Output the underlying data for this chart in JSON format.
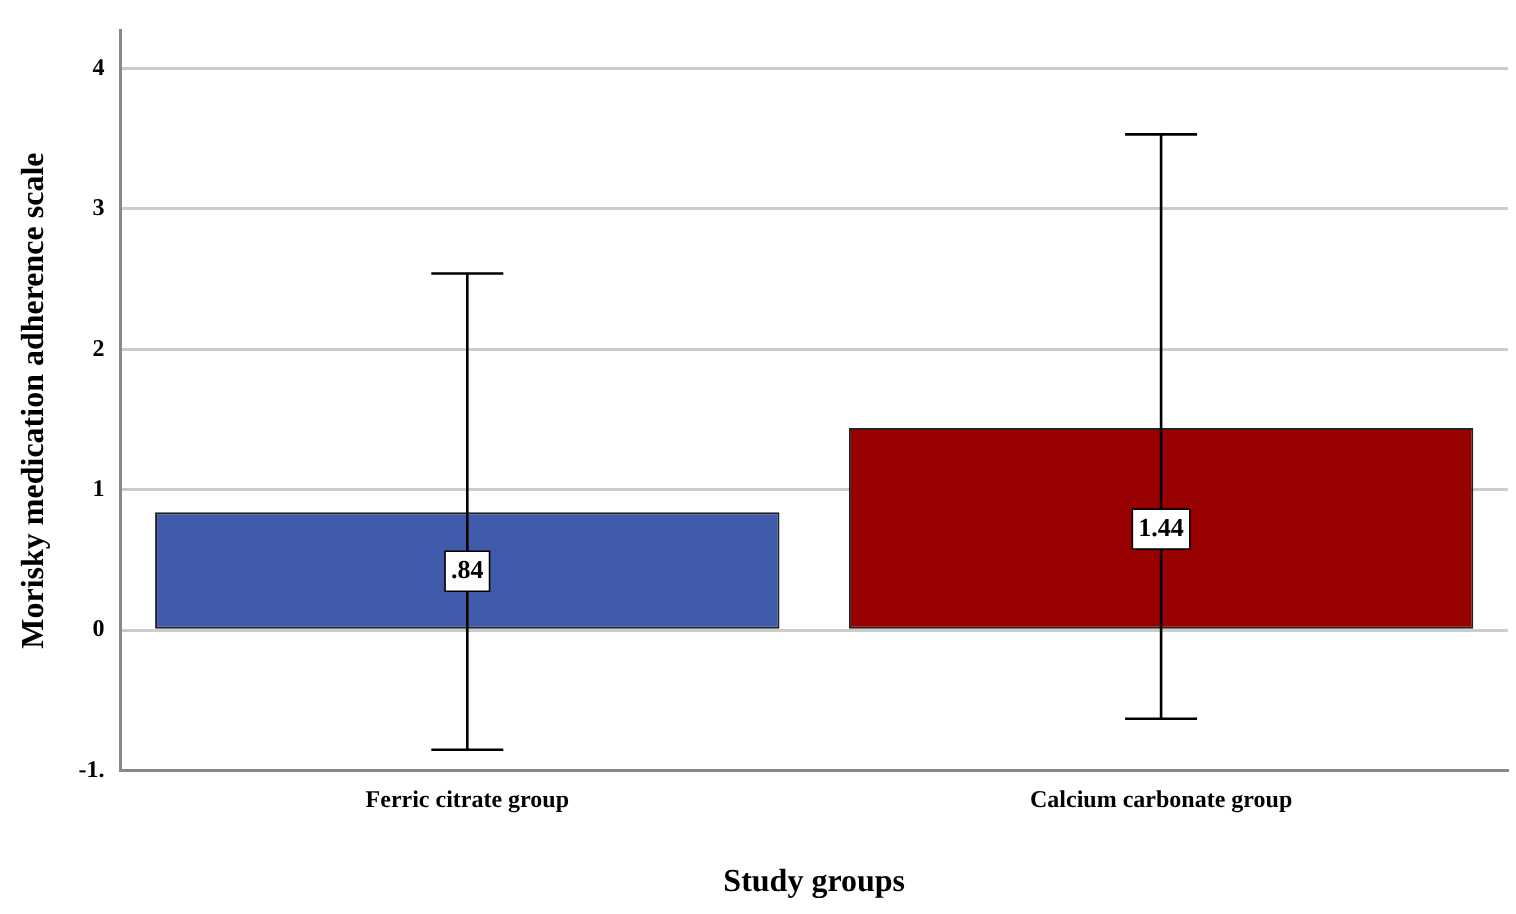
{
  "chart_data": {
    "type": "bar",
    "xlabel": "Study groups",
    "ylabel": "Morisky medication adherence scale",
    "categories": [
      "Ferric citrate group",
      "Calcium carbonate group"
    ],
    "values": [
      0.84,
      1.44
    ],
    "colors": [
      "#3f5ba9",
      "#990000"
    ],
    "errors": [
      [
        -0.85,
        2.54
      ],
      [
        -0.63,
        3.53
      ]
    ],
    "value_labels": [
      ".84",
      "1.44"
    ],
    "ylim": [
      -1,
      4.27
    ],
    "yticks": [
      {
        "value": -1,
        "label": "-1."
      },
      0,
      1,
      2,
      3,
      4
    ],
    "grid": "y"
  }
}
